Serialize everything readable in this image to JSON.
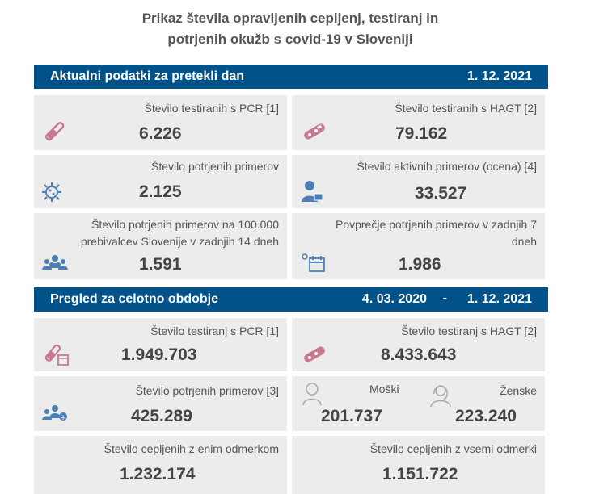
{
  "title_line1": "Prikaz števila opravljenih cepljenj, testiranj in",
  "title_line2": "potrjenih okužb s covid-19 v Sloveniji",
  "daily": {
    "header": "Aktualni podatki za pretekli dan",
    "date": "1. 12. 2021",
    "tiles": [
      {
        "label": "Število testiranih s PCR [1]",
        "value": "6.226"
      },
      {
        "label": "Število testiranih s HAGT [2]",
        "value": "79.162"
      },
      {
        "label": "Število potrjenih primerov",
        "value": "2.125"
      },
      {
        "label": "Število aktivnih primerov (ocena) [4]",
        "value": "33.527"
      },
      {
        "label_line1": "Število potrjenih primerov na 100.000",
        "label_line2": "prebivalcev Slovenije v zadnjih 14 dneh",
        "value": "1.591"
      },
      {
        "label_line1": "Povprečje potrjenih primerov v zadnjih 7",
        "label_line2": "dneh",
        "value": "1.986"
      }
    ]
  },
  "total": {
    "header": "Pregled za celotno obdobje",
    "date_from": "4. 03. 2020",
    "dash": "-",
    "date_to": "1. 12. 2021",
    "tiles": [
      {
        "label": "Število testiranj s PCR [1]",
        "value": "1.949.703"
      },
      {
        "label": "Število testiranj s HAGT [2]",
        "value": "8.433.643"
      },
      {
        "label": "Število potrjenih primerov [3]",
        "value": "425.289"
      },
      {
        "male_label": "Moški",
        "male_value": "201.737",
        "female_label": "Ženske",
        "female_value": "223.240"
      },
      {
        "label": "Število cepljenih z enim odmerkom",
        "value": "1.232.174"
      },
      {
        "label": "Število cepljenih z vsemi odmerki",
        "value": "1.151.722"
      }
    ]
  },
  "colors": {
    "header_bg": "#015289",
    "tile_bg": "#ececec",
    "icon_pink": "#c8798e",
    "icon_blue": "#4a7fb5"
  }
}
